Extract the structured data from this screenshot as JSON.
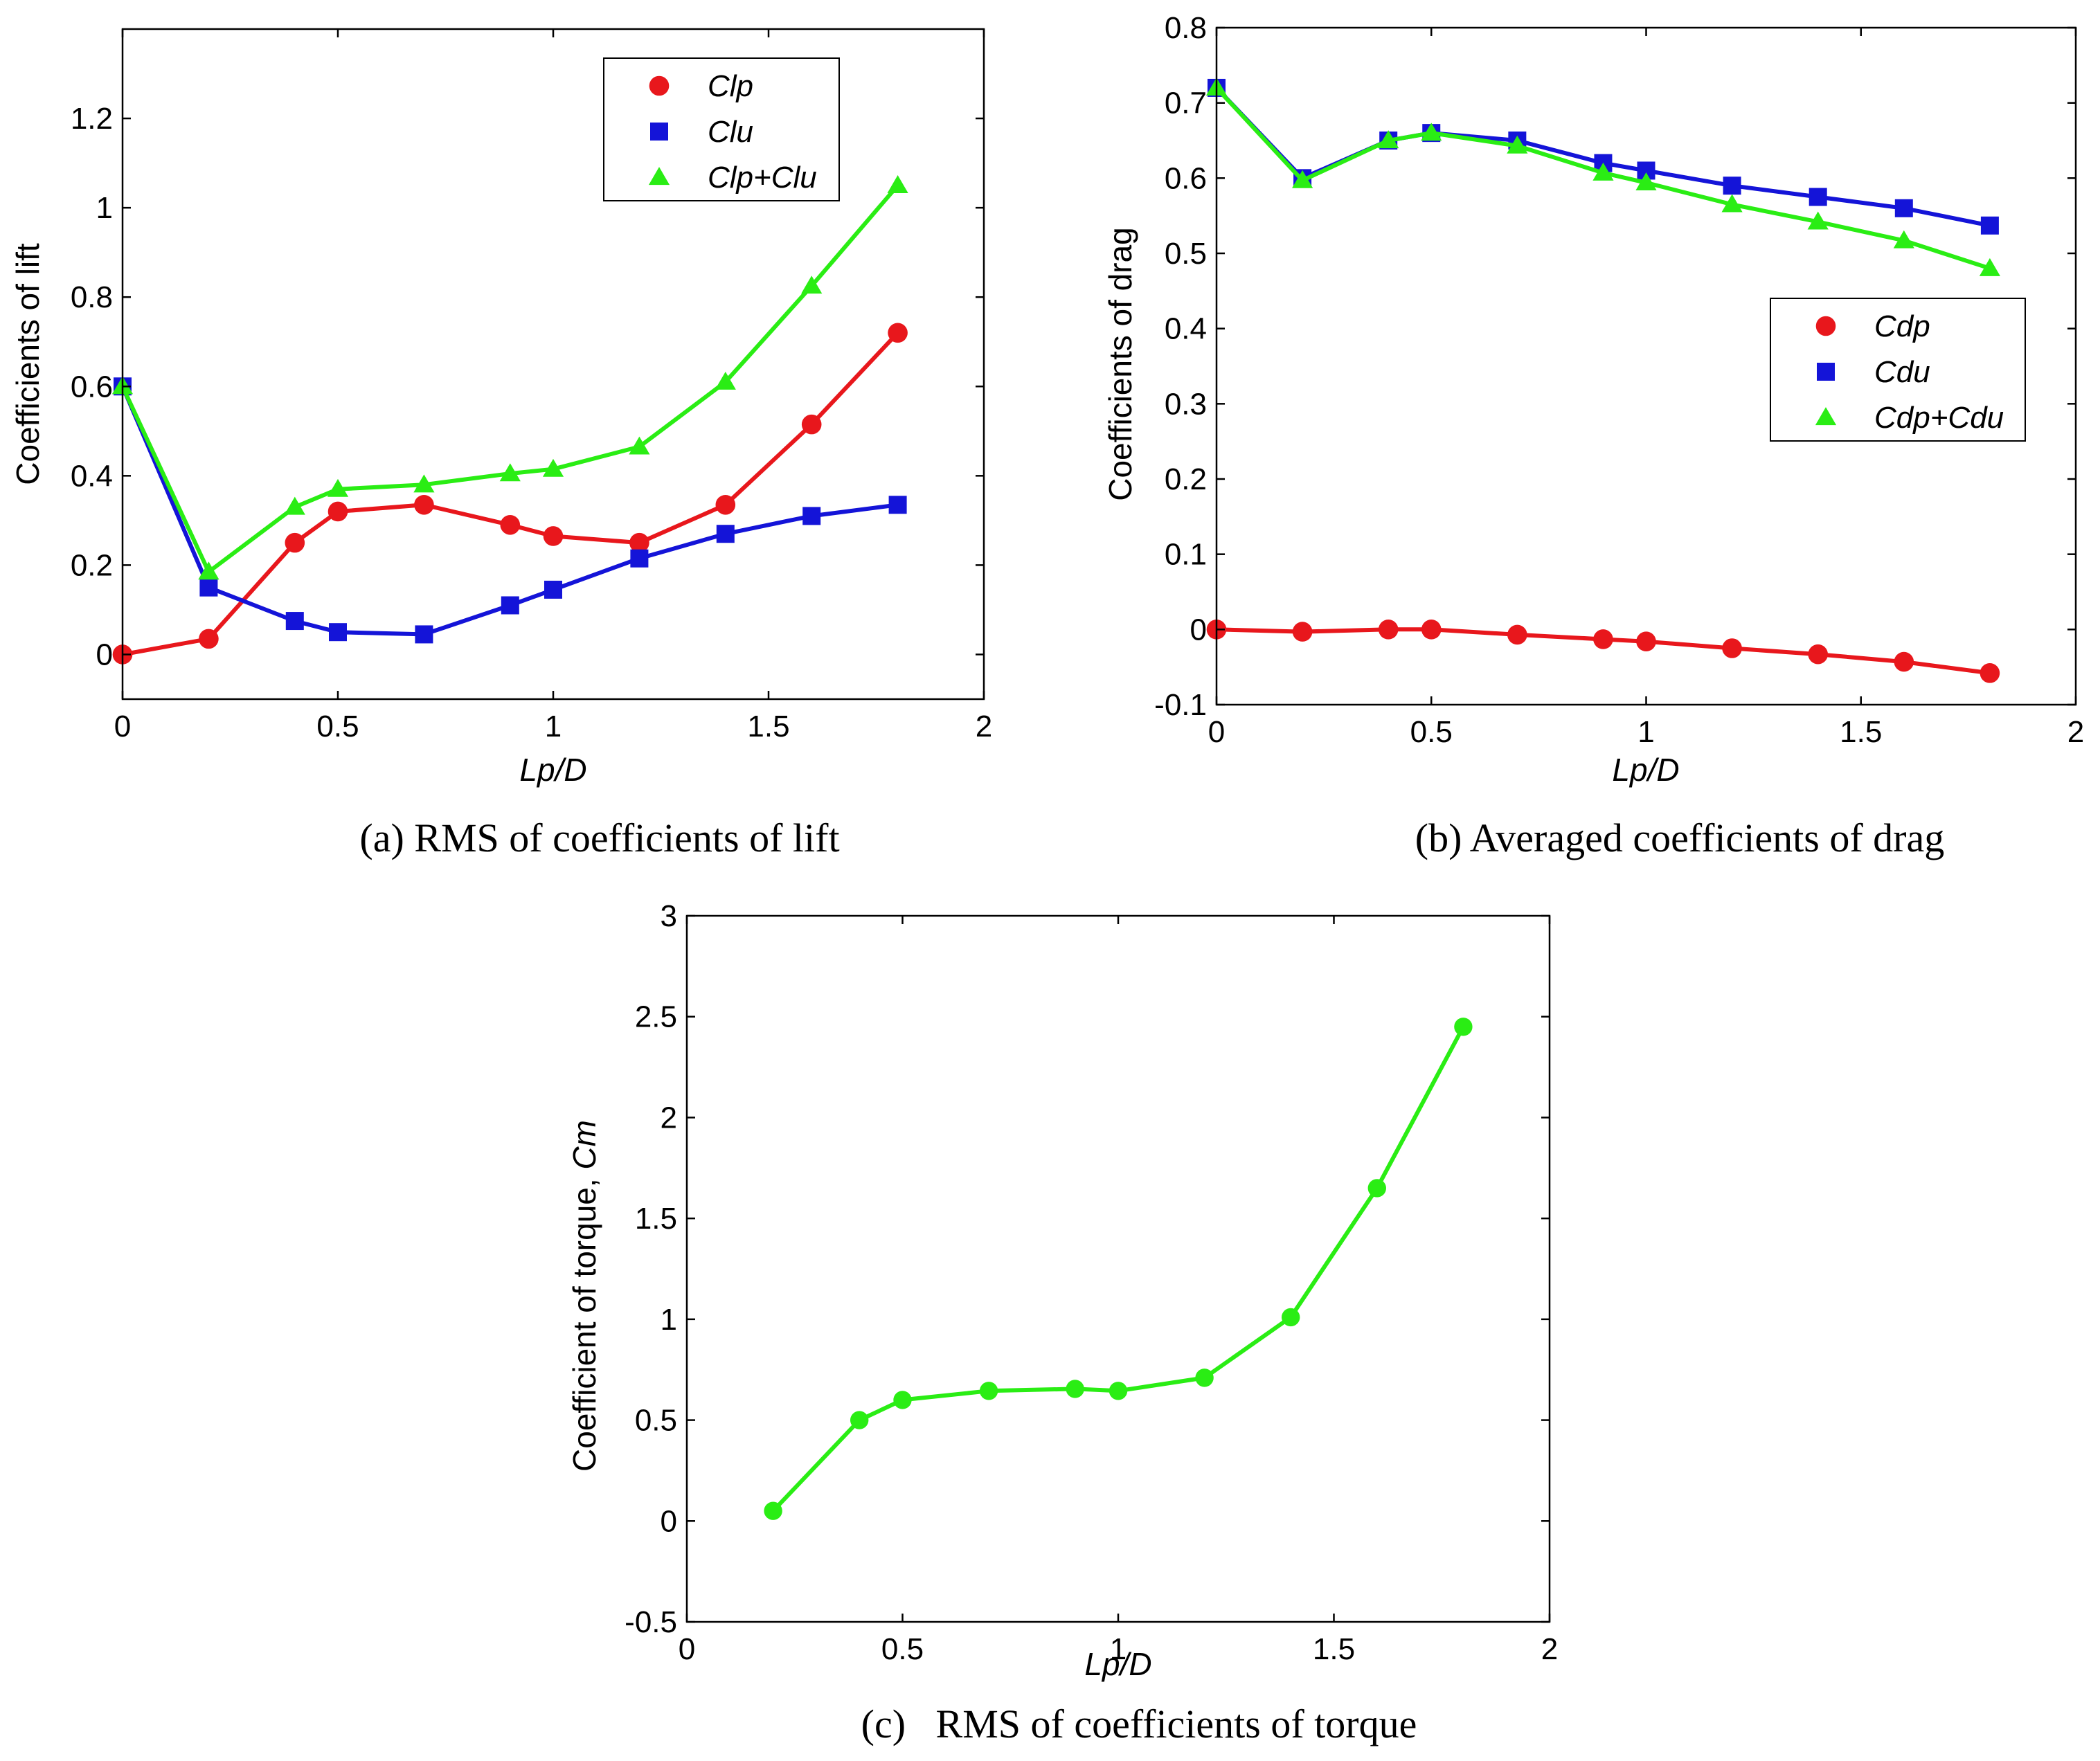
{
  "colors": {
    "red": "#e8171c",
    "blue": "#1414d8",
    "green": "#2aed14"
  },
  "chart_data": [
    {
      "id": "a",
      "type": "line",
      "caption": "(a) RMS of coefficients of lift",
      "xlabel": "Lp/D",
      "ylabel": "Coefficients of lift",
      "xlim": [
        0,
        2
      ],
      "ylim": [
        -0.1,
        1.4
      ],
      "xticks": [
        0,
        0.5,
        1,
        1.5,
        2
      ],
      "xtick_labels": [
        "0",
        "0.5",
        "1",
        "1.5",
        "2"
      ],
      "yticks": [
        0,
        0.2,
        0.4,
        0.6,
        0.8,
        1,
        1.2
      ],
      "ytick_labels": [
        "0",
        "0.2",
        "0.4",
        "0.6",
        "0.8",
        "1",
        "1.2"
      ],
      "legend_position": "top-right",
      "series": [
        {
          "name": "Clp",
          "color": "red",
          "marker": "circle",
          "x": [
            0,
            0.2,
            0.4,
            0.5,
            0.7,
            0.9,
            1.0,
            1.2,
            1.4,
            1.6,
            1.8
          ],
          "y": [
            0.0,
            0.035,
            0.25,
            0.32,
            0.335,
            0.29,
            0.265,
            0.25,
            0.335,
            0.515,
            0.72
          ]
        },
        {
          "name": "Clu",
          "color": "blue",
          "marker": "square",
          "x": [
            0,
            0.2,
            0.4,
            0.5,
            0.7,
            0.9,
            1.0,
            1.2,
            1.4,
            1.6,
            1.8
          ],
          "y": [
            0.6,
            0.15,
            0.075,
            0.05,
            0.045,
            0.11,
            0.145,
            0.215,
            0.27,
            0.31,
            0.335
          ]
        },
        {
          "name": "Clp+Clu",
          "color": "green",
          "marker": "triangle",
          "x": [
            0,
            0.2,
            0.4,
            0.5,
            0.7,
            0.9,
            1.0,
            1.2,
            1.4,
            1.6,
            1.8
          ],
          "y": [
            0.6,
            0.185,
            0.33,
            0.37,
            0.38,
            0.405,
            0.415,
            0.465,
            0.61,
            0.825,
            1.05
          ]
        }
      ]
    },
    {
      "id": "b",
      "type": "line",
      "caption": "(b) Averaged coefficients of drag",
      "xlabel": "Lp/D",
      "ylabel": "Coefficients of drag",
      "xlim": [
        0,
        2
      ],
      "ylim": [
        -0.1,
        0.8
      ],
      "xticks": [
        0,
        0.5,
        1,
        1.5,
        2
      ],
      "xtick_labels": [
        "0",
        "0.5",
        "1",
        "1.5",
        "2"
      ],
      "yticks": [
        -0.1,
        0,
        0.1,
        0.2,
        0.3,
        0.4,
        0.5,
        0.6,
        0.7,
        0.8
      ],
      "ytick_labels": [
        "-0.1",
        "0",
        "0.1",
        "0.2",
        "0.3",
        "0.4",
        "0.5",
        "0.6",
        "0.7",
        "0.8"
      ],
      "legend_position": "middle-right",
      "series": [
        {
          "name": "Cdp",
          "color": "red",
          "marker": "circle",
          "x": [
            0,
            0.2,
            0.4,
            0.5,
            0.7,
            0.9,
            1.0,
            1.2,
            1.4,
            1.6,
            1.8
          ],
          "y": [
            0.0,
            -0.003,
            0.0,
            0.0,
            -0.007,
            -0.013,
            -0.016,
            -0.025,
            -0.033,
            -0.043,
            -0.058
          ]
        },
        {
          "name": "Cdu",
          "color": "blue",
          "marker": "square",
          "x": [
            0,
            0.2,
            0.4,
            0.5,
            0.7,
            0.9,
            1.0,
            1.2,
            1.4,
            1.6,
            1.8
          ],
          "y": [
            0.72,
            0.6,
            0.65,
            0.66,
            0.65,
            0.62,
            0.61,
            0.59,
            0.575,
            0.56,
            0.537
          ]
        },
        {
          "name": "Cdp+Cdu",
          "color": "green",
          "marker": "triangle",
          "x": [
            0,
            0.2,
            0.4,
            0.5,
            0.7,
            0.9,
            1.0,
            1.2,
            1.4,
            1.6,
            1.8
          ],
          "y": [
            0.72,
            0.597,
            0.65,
            0.66,
            0.643,
            0.607,
            0.594,
            0.565,
            0.542,
            0.517,
            0.48
          ]
        }
      ]
    },
    {
      "id": "c",
      "type": "line",
      "caption": "(c)   RMS of coefficients of torque",
      "xlabel": "Lp/D",
      "ylabel_prefix": "Coefficient of torque, ",
      "ylabel_var": "Cm",
      "xlim": [
        0,
        2
      ],
      "ylim": [
        -0.5,
        3
      ],
      "xticks": [
        0,
        0.5,
        1,
        1.5,
        2
      ],
      "xtick_labels": [
        "0",
        "0.5",
        "1",
        "1.5",
        "2"
      ],
      "yticks": [
        -0.5,
        0,
        0.5,
        1,
        1.5,
        2,
        2.5,
        3
      ],
      "ytick_labels": [
        "-0.5",
        "0",
        "0.5",
        "1",
        "1.5",
        "2",
        "2.5",
        "3"
      ],
      "series": [
        {
          "name": "Cm",
          "color": "green",
          "marker": "circle",
          "x": [
            0.2,
            0.4,
            0.5,
            0.7,
            0.9,
            1.0,
            1.2,
            1.4,
            1.6,
            1.8
          ],
          "y": [
            0.05,
            0.5,
            0.6,
            0.645,
            0.655,
            0.645,
            0.71,
            1.01,
            1.65,
            2.45
          ]
        }
      ]
    }
  ]
}
